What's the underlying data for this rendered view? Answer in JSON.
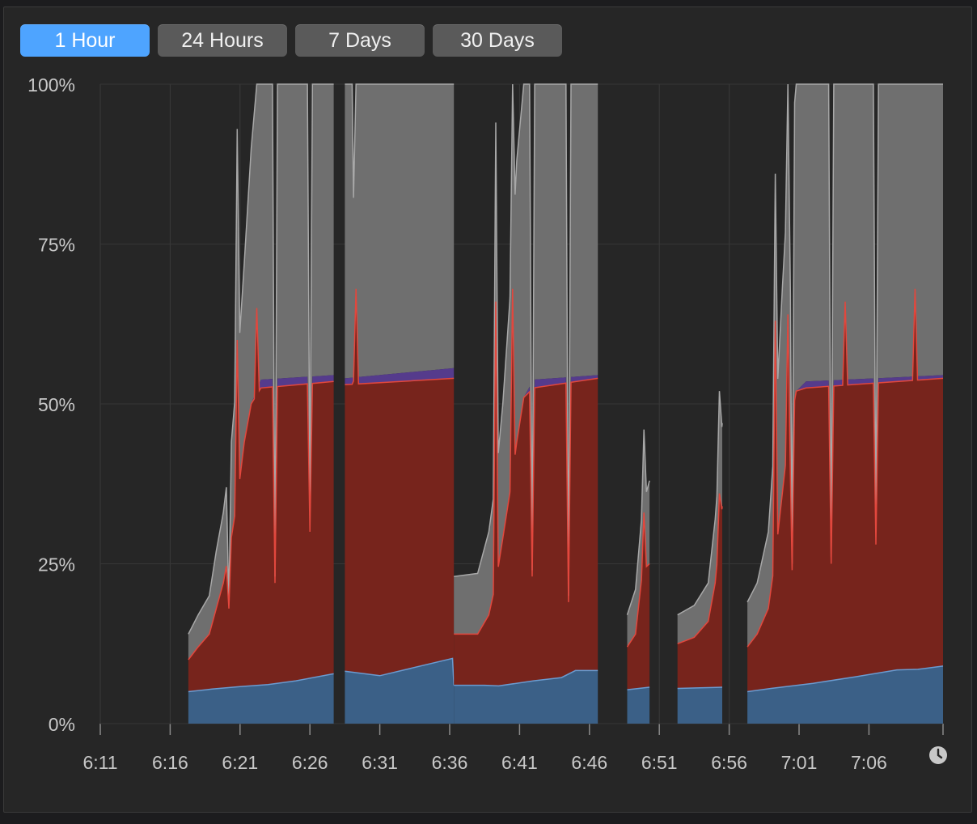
{
  "tabs": [
    {
      "label": "1 Hour",
      "active": true
    },
    {
      "label": "24 Hours",
      "active": false
    },
    {
      "label": "7 Days",
      "active": false
    },
    {
      "label": "30 Days",
      "active": false
    }
  ],
  "icons": {
    "clock": "clock-icon"
  },
  "colors": {
    "blue": "#3b6087",
    "blue_line": "#6a9bd0",
    "red": "#77241c",
    "red_line": "#e2473d",
    "purple": "#553b8c",
    "gray": "#6f6f6f",
    "gray_line": "#a8a8a8",
    "active_tab": "#4ea4ff"
  },
  "chart_data": {
    "type": "area",
    "stacked": true,
    "x_ticks": [
      "6:11",
      "6:16",
      "6:21",
      "6:26",
      "6:31",
      "6:36",
      "6:41",
      "6:46",
      "6:51",
      "6:56",
      "7:01",
      "7:06"
    ],
    "x_tick_minutes": [
      0,
      5,
      10,
      15,
      20,
      25,
      30,
      35,
      40,
      45,
      50,
      55
    ],
    "x_end_minute": 60.3,
    "y_ticks": [
      "0%",
      "25%",
      "50%",
      "75%",
      "100%"
    ],
    "y_tick_values": [
      0,
      25,
      50,
      75,
      100
    ],
    "ylim": [
      0,
      100
    ],
    "xlabel": "",
    "ylabel": "",
    "grid": true,
    "segments": [
      {
        "start": 6.3,
        "end": 16.7,
        "blue": [
          [
            6.3,
            5
          ],
          [
            8,
            5.4
          ],
          [
            10,
            5.8
          ],
          [
            12,
            6.1
          ],
          [
            14,
            6.7
          ],
          [
            16.7,
            7.8
          ]
        ],
        "red": [
          [
            6.3,
            10
          ],
          [
            7,
            12
          ],
          [
            7.8,
            14
          ],
          [
            8.3,
            18
          ],
          [
            8.8,
            22
          ],
          [
            9.3,
            28
          ],
          [
            9.8,
            35
          ],
          [
            10.3,
            44
          ],
          [
            10.8,
            50
          ],
          [
            11.5,
            52.5
          ],
          [
            16.7,
            53.5
          ]
        ],
        "purple": [
          [
            6.3,
            10
          ],
          [
            7,
            12
          ],
          [
            7.8,
            14
          ],
          [
            8.3,
            18
          ],
          [
            8.8,
            22
          ],
          [
            9.3,
            28
          ],
          [
            9.8,
            35
          ],
          [
            10.3,
            44
          ],
          [
            10.8,
            50
          ],
          [
            11.5,
            53.8
          ],
          [
            16.7,
            54.5
          ]
        ],
        "gray": [
          [
            6.3,
            14
          ],
          [
            7,
            17
          ],
          [
            7.8,
            20
          ],
          [
            8.3,
            27
          ],
          [
            8.8,
            33
          ],
          [
            9.3,
            42
          ],
          [
            9.8,
            55
          ],
          [
            10.3,
            72
          ],
          [
            10.8,
            90
          ],
          [
            11.2,
            100
          ],
          [
            16.7,
            100
          ]
        ],
        "dips": [
          {
            "x": 9.2,
            "red": 18,
            "gray": 19
          },
          {
            "x": 12.5,
            "red": 22,
            "gray": 23
          },
          {
            "x": 15.0,
            "red": 30,
            "gray": 35
          }
        ],
        "spikes": [
          {
            "x": 9.8,
            "red": 60,
            "gray": 93
          },
          {
            "x": 11.2,
            "red": 65,
            "gray": 100
          }
        ]
      },
      {
        "start": 17.5,
        "end": 25.3,
        "blue": [
          [
            17.5,
            8.2
          ],
          [
            20,
            7.5
          ],
          [
            25.2,
            10.2
          ],
          [
            25.3,
            6
          ]
        ],
        "red": [
          [
            17.5,
            53
          ],
          [
            25.3,
            54
          ]
        ],
        "purple": [
          [
            17.5,
            54
          ],
          [
            25.3,
            55.6
          ]
        ],
        "gray": [
          [
            17.5,
            100
          ],
          [
            25.3,
            100
          ]
        ],
        "dips": [
          {
            "x": 18.2,
            "red": 54,
            "gray": 68
          }
        ],
        "spikes": [
          {
            "x": 18.3,
            "red": 68,
            "gray": 100
          }
        ]
      },
      {
        "start": 25.3,
        "end": 35.6,
        "blue": [
          [
            25.3,
            6
          ],
          [
            27.5,
            6
          ],
          [
            28.5,
            5.9
          ],
          [
            31,
            6.7
          ],
          [
            33,
            7.2
          ],
          [
            34,
            8.3
          ],
          [
            35.6,
            8.3
          ]
        ],
        "red": [
          [
            25.3,
            14
          ],
          [
            27,
            14
          ],
          [
            27.8,
            17
          ],
          [
            28.3,
            22
          ],
          [
            28.8,
            29
          ],
          [
            29.3,
            36
          ],
          [
            29.8,
            44
          ],
          [
            30.3,
            51
          ],
          [
            31,
            52.5
          ],
          [
            35.6,
            54
          ]
        ],
        "purple": [
          [
            25.3,
            14
          ],
          [
            27,
            14
          ],
          [
            27.8,
            17
          ],
          [
            28.3,
            22
          ],
          [
            28.8,
            29
          ],
          [
            29.3,
            36
          ],
          [
            29.8,
            44
          ],
          [
            30.3,
            51
          ],
          [
            31,
            53.8
          ],
          [
            35.6,
            54.5
          ]
        ],
        "gray": [
          [
            25.3,
            23
          ],
          [
            27,
            23.5
          ],
          [
            27.8,
            30
          ],
          [
            28.3,
            38
          ],
          [
            28.8,
            50
          ],
          [
            29.3,
            66
          ],
          [
            29.8,
            88
          ],
          [
            30.3,
            100
          ],
          [
            35.6,
            100
          ]
        ],
        "dips": [
          {
            "x": 30.9,
            "red": 23,
            "gray": 24
          },
          {
            "x": 33.5,
            "red": 19,
            "gray": 20
          }
        ],
        "spikes": [
          {
            "x": 28.3,
            "red": 66,
            "gray": 94
          },
          {
            "x": 29.5,
            "red": 68,
            "gray": 100
          }
        ]
      },
      {
        "start": 37.7,
        "end": 39.3,
        "blue": [
          [
            37.7,
            5.3
          ],
          [
            39.3,
            5.7
          ]
        ],
        "red": [
          [
            37.7,
            12
          ],
          [
            38.3,
            14
          ],
          [
            38.8,
            24
          ],
          [
            39.3,
            25
          ]
        ],
        "purple": [
          [
            37.7,
            12
          ],
          [
            38.3,
            14
          ],
          [
            38.8,
            24
          ],
          [
            39.3,
            25
          ]
        ],
        "gray": [
          [
            37.7,
            17
          ],
          [
            38.3,
            21
          ],
          [
            38.8,
            34
          ],
          [
            39.3,
            38
          ]
        ],
        "dips": [],
        "spikes": [
          {
            "x": 38.9,
            "red": 33,
            "gray": 46
          }
        ]
      },
      {
        "start": 41.3,
        "end": 44.5,
        "blue": [
          [
            41.3,
            5.5
          ],
          [
            44.5,
            5.7
          ]
        ],
        "red": [
          [
            41.3,
            12.5
          ],
          [
            42.5,
            13.5
          ],
          [
            43.5,
            16
          ],
          [
            44,
            22
          ],
          [
            44.5,
            34
          ]
        ],
        "purple": [
          [
            41.3,
            12.5
          ],
          [
            42.5,
            13.5
          ],
          [
            43.5,
            16
          ],
          [
            44,
            22
          ],
          [
            44.5,
            34
          ]
        ],
        "gray": [
          [
            41.3,
            17
          ],
          [
            42.5,
            18.5
          ],
          [
            43.5,
            22
          ],
          [
            44,
            32
          ],
          [
            44.5,
            47
          ]
        ],
        "dips": [],
        "spikes": [
          {
            "x": 44.3,
            "red": 36,
            "gray": 52
          }
        ]
      },
      {
        "start": 46.3,
        "end": 60.3,
        "blue": [
          [
            46.3,
            5
          ],
          [
            48,
            5.5
          ],
          [
            51,
            6.3
          ],
          [
            54,
            7.3
          ],
          [
            57,
            8.4
          ],
          [
            58.5,
            8.5
          ],
          [
            60.3,
            9
          ]
        ],
        "red": [
          [
            46.3,
            12
          ],
          [
            47,
            14
          ],
          [
            47.8,
            18
          ],
          [
            48.3,
            26
          ],
          [
            48.8,
            36
          ],
          [
            49.3,
            46
          ],
          [
            49.8,
            52
          ],
          [
            50.5,
            52.5
          ],
          [
            60.3,
            54
          ]
        ],
        "purple": [
          [
            46.3,
            12
          ],
          [
            47,
            14
          ],
          [
            47.8,
            18
          ],
          [
            48.3,
            26
          ],
          [
            48.8,
            36
          ],
          [
            49.3,
            46
          ],
          [
            49.8,
            52
          ],
          [
            50.5,
            53.5
          ],
          [
            60.3,
            54.5
          ]
        ],
        "gray": [
          [
            46.3,
            19
          ],
          [
            47,
            22
          ],
          [
            47.8,
            30
          ],
          [
            48.3,
            46
          ],
          [
            48.8,
            68
          ],
          [
            49.3,
            88
          ],
          [
            49.8,
            100
          ],
          [
            60.3,
            100
          ]
        ],
        "dips": [
          {
            "x": 49.5,
            "red": 24,
            "gray": 25
          },
          {
            "x": 52.3,
            "red": 25,
            "gray": 26
          },
          {
            "x": 55.5,
            "red": 28,
            "gray": 30
          }
        ],
        "spikes": [
          {
            "x": 48.3,
            "red": 63,
            "gray": 86
          },
          {
            "x": 49.2,
            "red": 64,
            "gray": 100
          },
          {
            "x": 53.3,
            "red": 66,
            "gray": 100
          },
          {
            "x": 58.3,
            "red": 68,
            "gray": 100
          }
        ]
      }
    ]
  }
}
